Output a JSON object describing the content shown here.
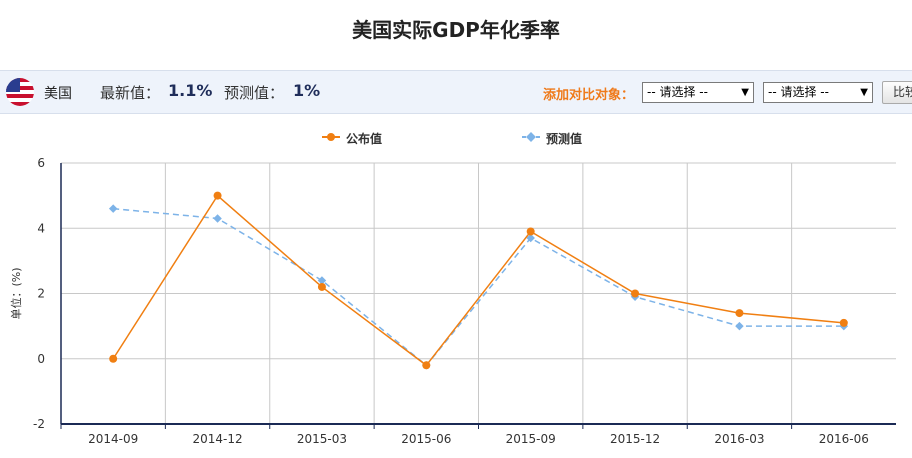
{
  "page": {
    "title": "美国实际GDP年化季率"
  },
  "toolbar": {
    "country": "美国",
    "latest_label": "最新值：",
    "latest_value": "1.1%",
    "forecast_label": "预测值：",
    "forecast_value": "1%",
    "compare_label": "添加对比对象：",
    "select1": "-- 请选择 --",
    "select2": "-- 请选择 --",
    "button": "比较",
    "flag_icon": "us-flag-icon"
  },
  "colors": {
    "published": "#f07f12",
    "forecast": "#7db3e8"
  },
  "chart_data": {
    "type": "line",
    "title": "",
    "xlabel": "",
    "ylabel": "单位：(%)",
    "categories": [
      "2014-09",
      "2014-12",
      "2015-03",
      "2015-06",
      "2015-09",
      "2015-12",
      "2016-03",
      "2016-06"
    ],
    "series": [
      {
        "name": "公布值",
        "values": [
          0,
          5,
          2.2,
          -0.2,
          3.9,
          2.0,
          1.4,
          1.1
        ]
      },
      {
        "name": "预测值",
        "values": [
          4.6,
          4.3,
          2.4,
          -0.2,
          3.7,
          1.9,
          1.0,
          1.0
        ]
      }
    ],
    "ylim": [
      -2,
      6
    ],
    "yticks": [
      6,
      4,
      2,
      0,
      -2
    ],
    "grid": true,
    "legend": "top-center"
  }
}
